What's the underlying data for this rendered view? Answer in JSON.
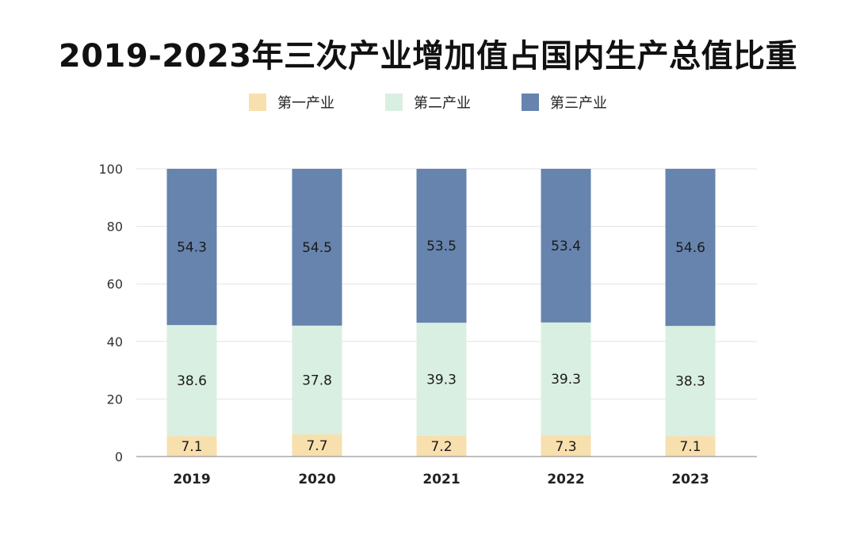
{
  "chart_data": {
    "type": "bar",
    "stacked": true,
    "title": "2019-2023年三次产业增加值占国内生产总值比重",
    "categories": [
      "2019",
      "2020",
      "2021",
      "2022",
      "2023"
    ],
    "series": [
      {
        "name": "第一产业",
        "color": "#f8dfae",
        "values": [
          7.1,
          7.7,
          7.2,
          7.3,
          7.1
        ]
      },
      {
        "name": "第二产业",
        "color": "#d9efe2",
        "values": [
          38.6,
          37.8,
          39.3,
          39.3,
          38.3
        ]
      },
      {
        "name": "第三产业",
        "color": "#6684ad",
        "values": [
          54.3,
          54.5,
          53.5,
          53.4,
          54.6
        ]
      }
    ],
    "yticks": [
      0,
      20,
      40,
      60,
      80,
      100
    ],
    "ylim": [
      0,
      100
    ],
    "xlabel": "",
    "ylabel": "",
    "grid": true,
    "legend": "top-center"
  }
}
